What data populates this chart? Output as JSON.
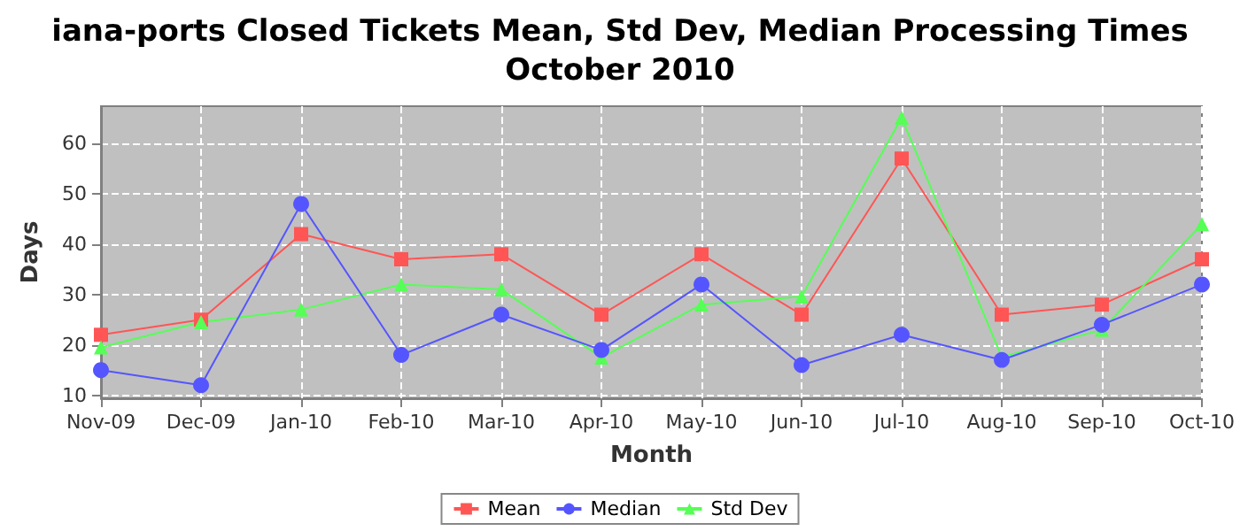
{
  "chart_data": {
    "type": "line",
    "title": "iana-ports Closed Tickets Mean, Std Dev, Median Processing Times\nOctober 2010",
    "xlabel": "Month",
    "ylabel": "Days",
    "categories": [
      "Nov-09",
      "Dec-09",
      "Jan-10",
      "Feb-10",
      "Mar-10",
      "Apr-10",
      "May-10",
      "Jun-10",
      "Jul-10",
      "Aug-10",
      "Sep-10",
      "Oct-10"
    ],
    "series": [
      {
        "name": "Mean",
        "color": "#ff5555",
        "marker": "square",
        "values": [
          22,
          25,
          42,
          37,
          38,
          26,
          38,
          26,
          57,
          26,
          28,
          37
        ]
      },
      {
        "name": "Median",
        "color": "#5555ff",
        "marker": "circle",
        "values": [
          15,
          12,
          48,
          18,
          26,
          19,
          32,
          16,
          22,
          17,
          24,
          32
        ]
      },
      {
        "name": "Std Dev",
        "color": "#55ff55",
        "marker": "triangle",
        "values": [
          19.5,
          24.5,
          27,
          32,
          31,
          17.5,
          28,
          29.6,
          65.1,
          17.6,
          23,
          44
        ]
      }
    ],
    "ylim": [
      9.4,
      67.4
    ],
    "yticks": [
      10,
      20,
      30,
      40,
      50,
      60
    ],
    "grid": true,
    "legend": "bottom",
    "line_style": "solid"
  }
}
